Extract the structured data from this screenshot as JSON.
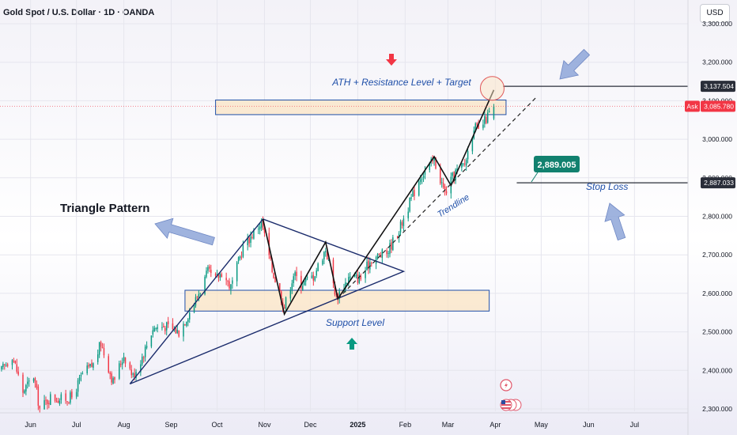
{
  "header": {
    "symbol_title": "Gold Spot / U.S. Dollar · 1D · OANDA",
    "currency_button": "USD"
  },
  "colors": {
    "up": "#089981",
    "down": "#f23645",
    "line": "#1a2b6b",
    "annotation_blue": "#1f4fa8",
    "zone_fill": "#fbe4c4",
    "arrow_fill": "#8ea6d8",
    "stoploss_badge": "#12816f",
    "ask_badge": "#f23645"
  },
  "chart_data": {
    "type": "candlestick",
    "title": "Gold Spot / U.S. Dollar · 1D · OANDA",
    "ylim": [
      2290,
      3320
    ],
    "y_ticks": [
      {
        "value": 3300,
        "label": "3,300.000"
      },
      {
        "value": 3200,
        "label": "3,200.000"
      },
      {
        "value": 3100,
        "label": "3,100.000"
      },
      {
        "value": 3000,
        "label": "3,000.000"
      },
      {
        "value": 2900,
        "label": "2,900.000"
      },
      {
        "value": 2800,
        "label": "2,800.000"
      },
      {
        "value": 2700,
        "label": "2,700.000"
      },
      {
        "value": 2600,
        "label": "2,600.000"
      },
      {
        "value": 2500,
        "label": "2,500.000"
      },
      {
        "value": 2400,
        "label": "2,400.000"
      },
      {
        "value": 2300,
        "label": "2,300.000"
      }
    ],
    "x_ticks": [
      {
        "label": "Jun",
        "date": "2024-06-01",
        "bold": false
      },
      {
        "label": "Jul",
        "date": "2024-07-01",
        "bold": false
      },
      {
        "label": "Aug",
        "date": "2024-08-01",
        "bold": false
      },
      {
        "label": "Sep",
        "date": "2024-09-01",
        "bold": false
      },
      {
        "label": "Oct",
        "date": "2024-10-01",
        "bold": false
      },
      {
        "label": "Nov",
        "date": "2024-11-01",
        "bold": false
      },
      {
        "label": "Dec",
        "date": "2024-12-01",
        "bold": false
      },
      {
        "label": "2025",
        "date": "2025-01-01",
        "bold": true
      },
      {
        "label": "Feb",
        "date": "2025-02-01",
        "bold": false
      },
      {
        "label": "Mar",
        "date": "2025-03-01",
        "bold": false
      },
      {
        "label": "Apr",
        "date": "2025-04-01",
        "bold": false
      },
      {
        "label": "May",
        "date": "2025-05-01",
        "bold": false
      },
      {
        "label": "Jun",
        "date": "2025-06-01",
        "bold": false
      },
      {
        "label": "Jul",
        "date": "2025-07-01",
        "bold": false
      }
    ],
    "x_start": "2024-05-12",
    "x_end": "2025-08-05",
    "close_path": [
      [
        "2024-05-13",
        2400
      ],
      [
        "2024-05-20",
        2440
      ],
      [
        "2024-05-27",
        2345
      ],
      [
        "2024-06-03",
        2385
      ],
      [
        "2024-06-07",
        2300
      ],
      [
        "2024-06-14",
        2330
      ],
      [
        "2024-06-21",
        2325
      ],
      [
        "2024-06-28",
        2330
      ],
      [
        "2024-07-05",
        2390
      ],
      [
        "2024-07-12",
        2415
      ],
      [
        "2024-07-17",
        2470
      ],
      [
        "2024-07-25",
        2370
      ],
      [
        "2024-08-01",
        2440
      ],
      [
        "2024-08-07",
        2385
      ],
      [
        "2024-08-14",
        2445
      ],
      [
        "2024-08-20",
        2510
      ],
      [
        "2024-08-28",
        2515
      ],
      [
        "2024-09-06",
        2500
      ],
      [
        "2024-09-16",
        2575
      ],
      [
        "2024-09-25",
        2655
      ],
      [
        "2024-09-30",
        2635
      ],
      [
        "2024-10-04",
        2655
      ],
      [
        "2024-10-10",
        2615
      ],
      [
        "2024-10-18",
        2720
      ],
      [
        "2024-10-30",
        2785
      ],
      [
        "2024-11-06",
        2660
      ],
      [
        "2024-11-14",
        2565
      ],
      [
        "2024-11-20",
        2650
      ],
      [
        "2024-11-25",
        2625
      ],
      [
        "2024-12-03",
        2645
      ],
      [
        "2024-12-11",
        2715
      ],
      [
        "2024-12-18",
        2590
      ],
      [
        "2024-12-26",
        2640
      ],
      [
        "2025-01-03",
        2640
      ],
      [
        "2025-01-10",
        2690
      ],
      [
        "2025-01-20",
        2705
      ],
      [
        "2025-01-28",
        2765
      ],
      [
        "2025-02-06",
        2855
      ],
      [
        "2025-02-11",
        2905
      ],
      [
        "2025-02-20",
        2945
      ],
      [
        "2025-02-27",
        2860
      ],
      [
        "2025-03-06",
        2915
      ],
      [
        "2025-03-12",
        2935
      ],
      [
        "2025-03-18",
        3035
      ],
      [
        "2025-03-21",
        3020
      ],
      [
        "2025-03-27",
        3060
      ],
      [
        "2025-03-31",
        3086
      ]
    ],
    "ath_high": 3128,
    "current_close": 3085.78,
    "annotations": {
      "resistance_zone": {
        "start": "2024-09-30",
        "end": "2025-04-08",
        "y_low": 3064,
        "y_high": 3102,
        "label": "ATH + Resistance Level + Target"
      },
      "support_zone": {
        "start": "2024-09-10",
        "end": "2025-03-28",
        "y_low": 2554,
        "y_high": 2608,
        "label": "Support Level"
      },
      "triangle_label": "Triangle Pattern",
      "trend_label": "Trendline",
      "stop_loss_label": "Stop Loss",
      "stop_loss_badge": "2,889.005",
      "target_price_label": "3,137.504",
      "stop_price_label": "2,887.033",
      "ask_label": "Ask",
      "ask_price_label": "3,085.780",
      "triangle": [
        [
          "2024-08-05",
          2365
        ],
        [
          "2024-10-31",
          2793
        ],
        [
          "2025-01-31",
          2657
        ]
      ],
      "zigzag": [
        [
          "2024-10-31",
          2793
        ],
        [
          "2024-11-14",
          2546
        ],
        [
          "2024-12-11",
          2733
        ],
        [
          "2024-12-19",
          2586
        ],
        [
          "2025-02-20",
          2955
        ],
        [
          "2025-03-03",
          2880
        ],
        [
          "2025-03-31",
          3128
        ]
      ],
      "dashed_trend": [
        [
          "2024-12-19",
          2586
        ],
        [
          "2025-04-28",
          3110
        ]
      ],
      "horizontal_target": {
        "start": "2025-04-06",
        "end": "2025-08-05",
        "y": 3137.5
      },
      "horizontal_stop": {
        "start": "2025-04-15",
        "end": "2025-08-05",
        "y": 2887
      }
    }
  }
}
